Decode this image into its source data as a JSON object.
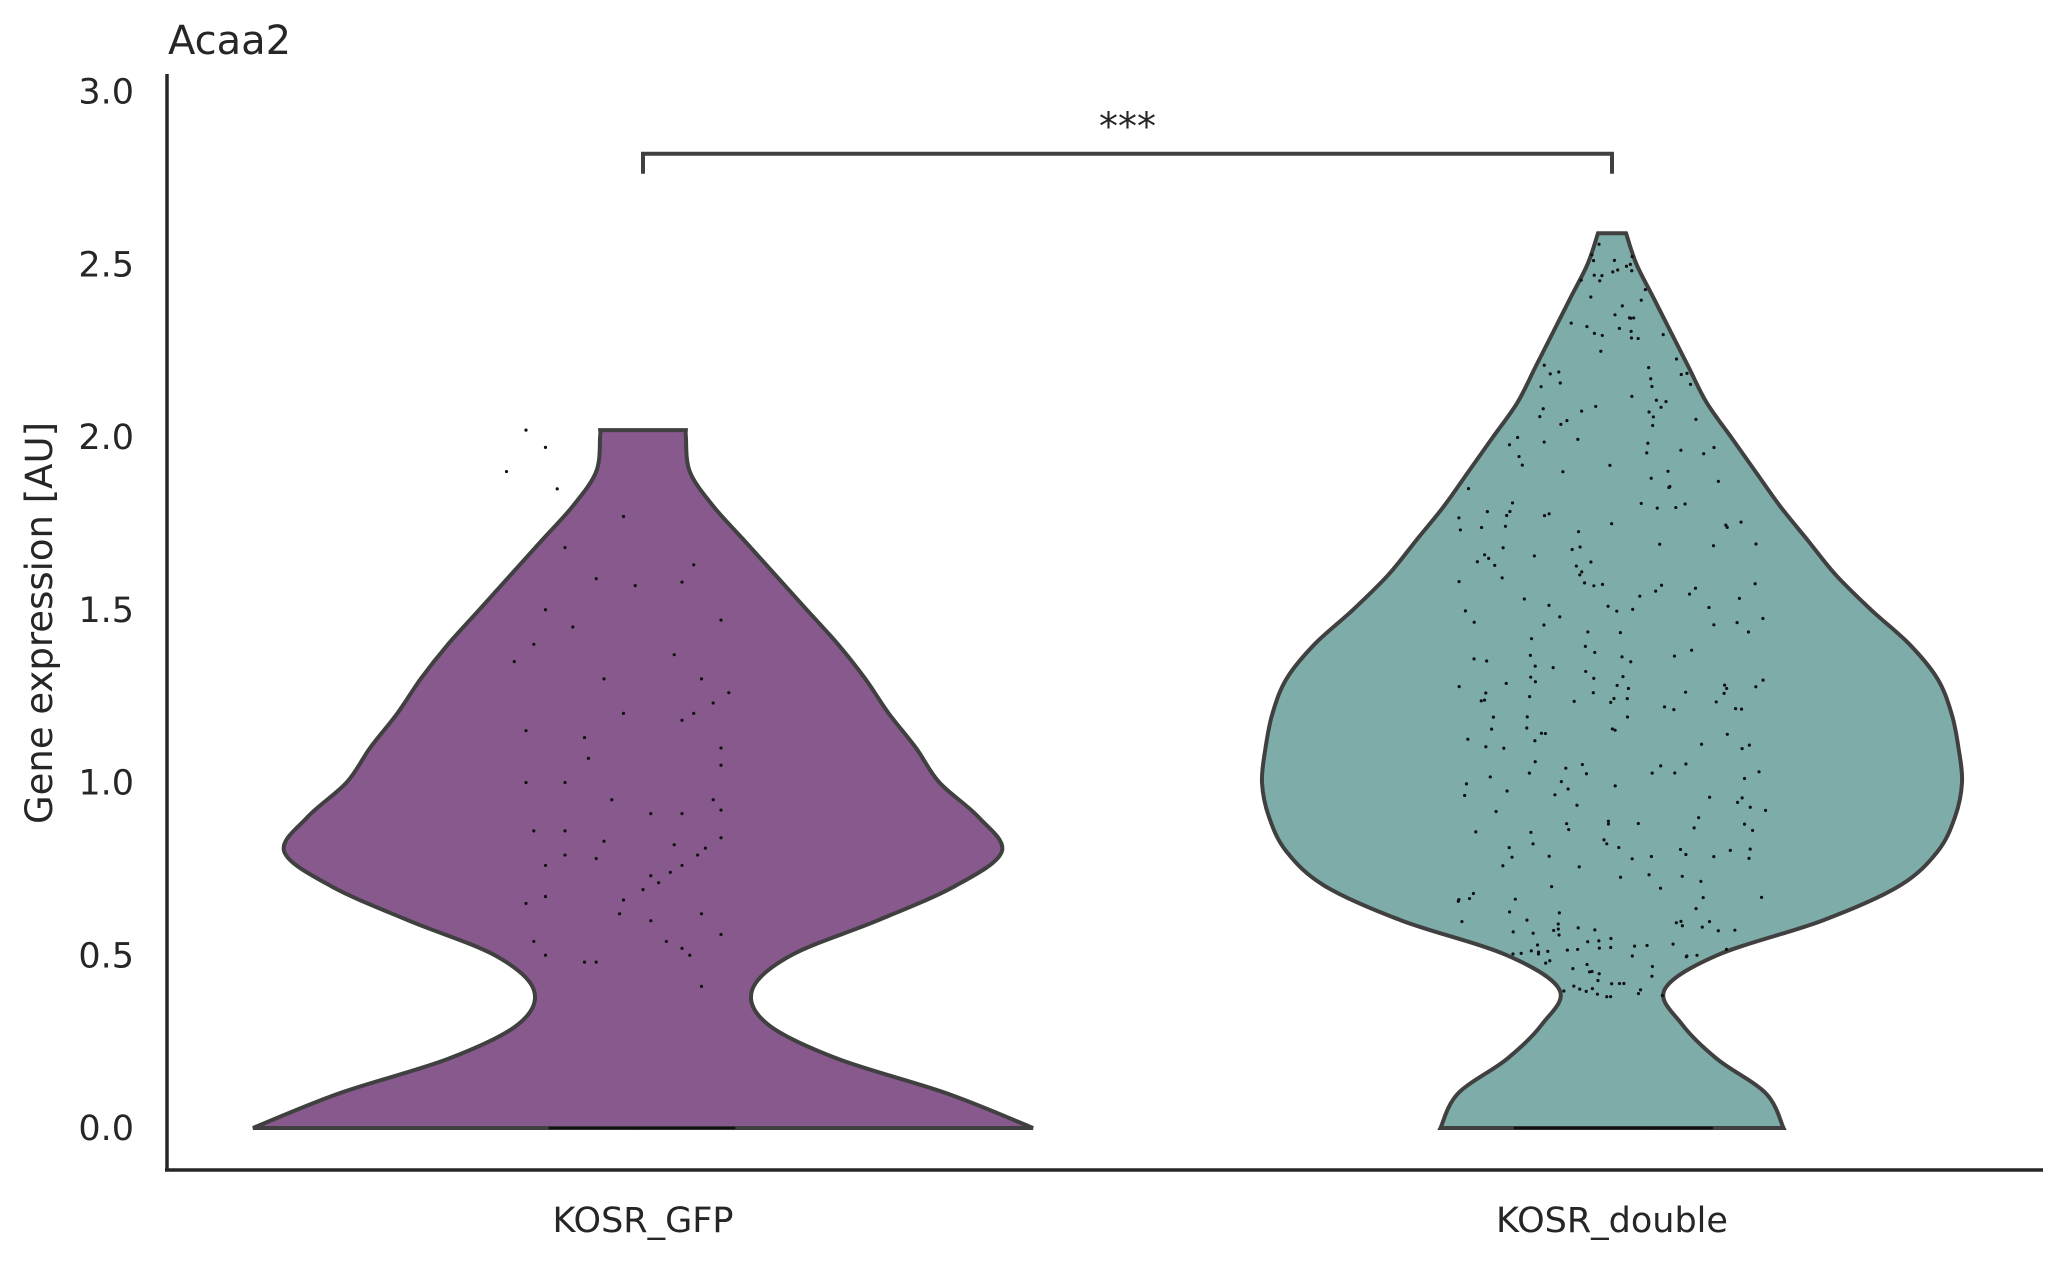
{
  "chart_data": {
    "type": "violin",
    "title": "Acaa2",
    "xlabel": "",
    "ylabel": "Gene expression [AU]",
    "ylim": [
      -0.12,
      3.05
    ],
    "yticks": [
      "0.0",
      "0.5",
      "1.0",
      "1.5",
      "2.0",
      "2.5",
      "3.0"
    ],
    "ytick_values": [
      0.0,
      0.5,
      1.0,
      1.5,
      2.0,
      2.5,
      3.0
    ],
    "grid": false,
    "legend": "none",
    "categories": [
      "KOSR_GFP",
      "KOSR_double"
    ],
    "series": [
      {
        "category": "KOSR_GFP",
        "color": "#87598d",
        "max": 2.02,
        "density_y": [
          0.0,
          0.1,
          0.2,
          0.3,
          0.4,
          0.5,
          0.6,
          0.7,
          0.8,
          0.9,
          1.0,
          1.1,
          1.2,
          1.3,
          1.4,
          1.5,
          1.6,
          1.7,
          1.8,
          1.9,
          2.0,
          2.02
        ],
        "density_half_width": [
          1.0,
          0.78,
          0.5,
          0.32,
          0.28,
          0.38,
          0.6,
          0.8,
          0.92,
          0.86,
          0.76,
          0.7,
          0.63,
          0.57,
          0.5,
          0.42,
          0.34,
          0.26,
          0.18,
          0.12,
          0.11,
          0.11
        ],
        "points": [
          [
            -0.3,
            2.02
          ],
          [
            -0.25,
            1.97
          ],
          [
            -0.35,
            1.9
          ],
          [
            -0.22,
            1.85
          ],
          [
            -0.05,
            1.77
          ],
          [
            -0.2,
            1.68
          ],
          [
            0.13,
            1.63
          ],
          [
            -0.12,
            1.59
          ],
          [
            -0.02,
            1.57
          ],
          [
            0.1,
            1.58
          ],
          [
            -0.25,
            1.5
          ],
          [
            0.2,
            1.47
          ],
          [
            -0.18,
            1.45
          ],
          [
            -0.33,
            1.35
          ],
          [
            -0.28,
            1.4
          ],
          [
            0.08,
            1.37
          ],
          [
            0.15,
            1.3
          ],
          [
            -0.1,
            1.3
          ],
          [
            0.22,
            1.26
          ],
          [
            0.18,
            1.23
          ],
          [
            -0.05,
            1.2
          ],
          [
            0.1,
            1.18
          ],
          [
            0.13,
            1.2
          ],
          [
            -0.3,
            1.15
          ],
          [
            -0.15,
            1.13
          ],
          [
            0.2,
            1.1
          ],
          [
            0.2,
            1.05
          ],
          [
            -0.14,
            1.07
          ],
          [
            -0.3,
            1.0
          ],
          [
            -0.2,
            1.0
          ],
          [
            -0.08,
            0.95
          ],
          [
            0.18,
            0.95
          ],
          [
            0.2,
            0.92
          ],
          [
            0.1,
            0.91
          ],
          [
            0.02,
            0.91
          ],
          [
            -0.28,
            0.86
          ],
          [
            -0.2,
            0.86
          ],
          [
            -0.1,
            0.83
          ],
          [
            0.2,
            0.84
          ],
          [
            0.08,
            0.82
          ],
          [
            0.16,
            0.81
          ],
          [
            -0.2,
            0.79
          ],
          [
            -0.12,
            0.78
          ],
          [
            0.14,
            0.79
          ],
          [
            0.1,
            0.76
          ],
          [
            -0.25,
            0.76
          ],
          [
            0.07,
            0.74
          ],
          [
            0.02,
            0.73
          ],
          [
            0.04,
            0.71
          ],
          [
            0.0,
            0.69
          ],
          [
            -0.05,
            0.66
          ],
          [
            -0.25,
            0.67
          ],
          [
            0.15,
            0.62
          ],
          [
            -0.3,
            0.65
          ],
          [
            -0.06,
            0.62
          ],
          [
            0.02,
            0.6
          ],
          [
            -0.28,
            0.54
          ],
          [
            0.06,
            0.54
          ],
          [
            0.1,
            0.52
          ],
          [
            0.12,
            0.5
          ],
          [
            -0.25,
            0.5
          ],
          [
            -0.15,
            0.48
          ],
          [
            -0.12,
            0.48
          ],
          [
            0.2,
            0.56
          ],
          [
            0.15,
            0.41
          ]
        ]
      },
      {
        "category": "KOSR_double",
        "color": "#7eaca9",
        "max": 2.59,
        "density_y": [
          0.0,
          0.1,
          0.2,
          0.3,
          0.4,
          0.5,
          0.6,
          0.7,
          0.8,
          0.9,
          1.0,
          1.1,
          1.2,
          1.3,
          1.4,
          1.5,
          1.6,
          1.7,
          1.8,
          1.9,
          2.0,
          2.1,
          2.2,
          2.3,
          2.4,
          2.5,
          2.59
        ],
        "density_half_width": [
          0.49,
          0.44,
          0.3,
          0.2,
          0.15,
          0.3,
          0.6,
          0.82,
          0.93,
          0.98,
          1.0,
          0.99,
          0.97,
          0.93,
          0.85,
          0.74,
          0.64,
          0.56,
          0.48,
          0.41,
          0.34,
          0.27,
          0.22,
          0.17,
          0.12,
          0.07,
          0.04
        ]
      }
    ],
    "significance": {
      "label": "***",
      "between": [
        "KOSR_GFP",
        "KOSR_double"
      ],
      "y": 2.82
    }
  }
}
